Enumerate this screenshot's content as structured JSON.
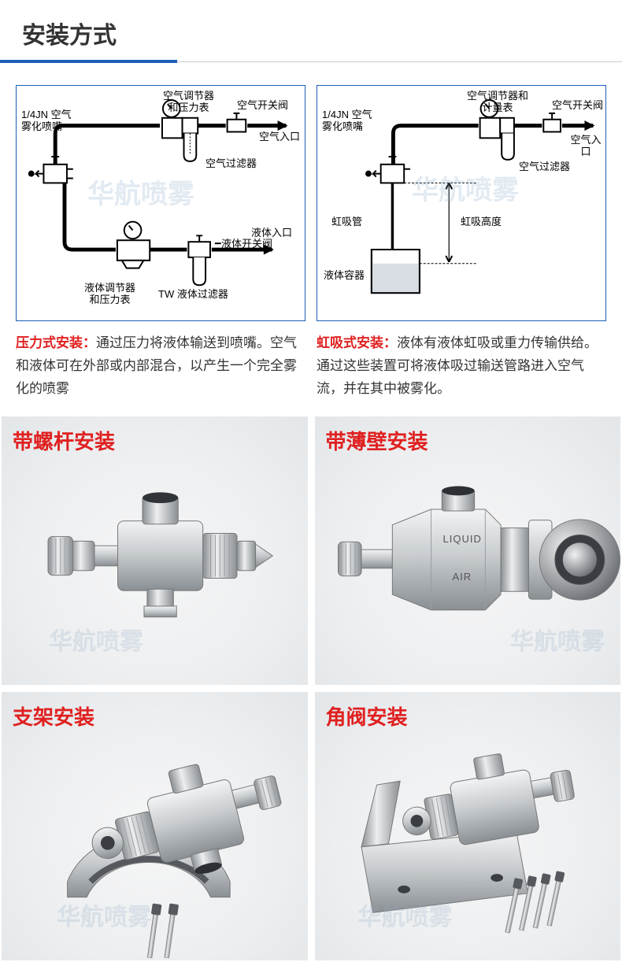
{
  "section_title": "安装方式",
  "watermark_text": "华航喷雾",
  "colors": {
    "accent": "#1b5fb8",
    "title": "#333333",
    "red": "#e02020",
    "border_gray": "#cccccc",
    "metal_light": "#e8e9eb",
    "metal_mid": "#bfc2c5",
    "metal_dark": "#888c90",
    "photo_bg": "#eceef0"
  },
  "diagrams": {
    "left": {
      "labels": {
        "nozzle": "1/4JN 空气\n雾化喷嘴",
        "air_regulator": "空气调节器\n和压力表",
        "air_switch": "空气开关阀",
        "air_inlet": "空气入口",
        "air_filter": "空气过滤器",
        "liquid_inlet": "液体入口",
        "liquid_switch": "液体开关阀",
        "tw_filter": "TW 液体过滤器",
        "liquid_regulator": "液体调节器\n和压力表"
      }
    },
    "right": {
      "labels": {
        "nozzle": "1/4JN 空气\n雾化喷嘴",
        "air_regulator": "空气调节器和\n计量表",
        "air_switch": "空气开关阀",
        "air_inlet": "空气入口",
        "air_filter": "空气过滤器",
        "siphon_tube": "虹吸管",
        "siphon_height": "虹吸高度",
        "liquid_container": "液体容器"
      }
    }
  },
  "descriptions": {
    "left": {
      "lead": "压力式安装：",
      "body": "通过压力将液体输送到喷嘴。空气和液体可在外部或内部混合，以产生一个完全雾化的喷雾"
    },
    "right": {
      "lead": "虹吸式安装：",
      "body": "液体有液体虹吸或重力传输供给。通过这些装置可将液体吸过输送管路进入空气流，并在其中被雾化。"
    }
  },
  "photos": [
    {
      "title": "带螺杆安装",
      "liquid": "",
      "air": ""
    },
    {
      "title": "带薄壁安装",
      "liquid": "LIQUID",
      "air": "AIR"
    },
    {
      "title": "支架安装",
      "liquid": "",
      "air": ""
    },
    {
      "title": "角阀安装",
      "liquid": "",
      "air": ""
    }
  ]
}
